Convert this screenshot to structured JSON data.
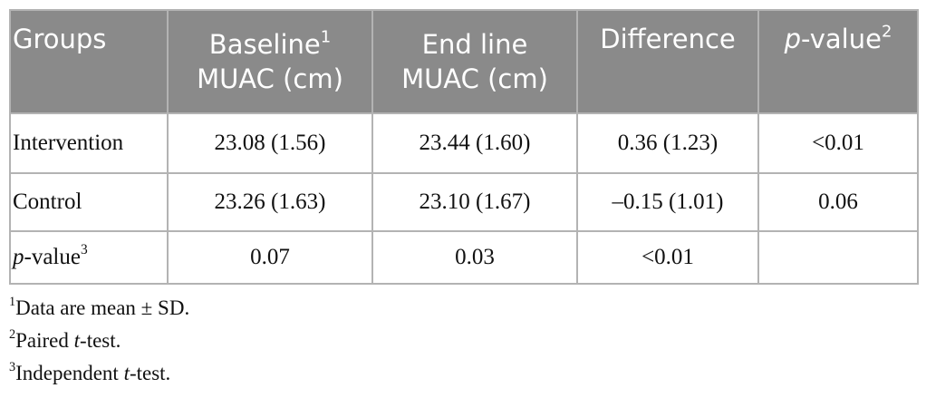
{
  "table": {
    "header": [
      {
        "text": "Groups"
      },
      {
        "text": "Baseline",
        "sup": "1",
        "line2": "MUAC (cm)"
      },
      {
        "text": "End line",
        "line2": "MUAC (cm)"
      },
      {
        "text": "Difference"
      },
      {
        "italic": "p",
        "text": "-value",
        "sup": "2"
      }
    ],
    "rows": [
      {
        "label": "Intervention",
        "cells": [
          "23.08 (1.56)",
          "23.44 (1.60)",
          "0.36 (1.23)",
          "<0.01"
        ]
      },
      {
        "label": "Control",
        "cells": [
          "23.26 (1.63)",
          "23.10 (1.67)",
          "–0.15 (1.01)",
          "0.06"
        ]
      },
      {
        "label": {
          "italic": "p",
          "text": "-value",
          "sup": "3"
        },
        "cells": [
          "0.07",
          "0.03",
          "<0.01"
        ]
      }
    ]
  },
  "footnotes": [
    {
      "mark": "1",
      "text": "Data are mean ± SD."
    },
    {
      "mark": "2",
      "before": "Paired ",
      "italic": "t",
      "after": "-test."
    },
    {
      "mark": "3",
      "before": "Independent ",
      "italic": "t",
      "after": "-test."
    }
  ]
}
